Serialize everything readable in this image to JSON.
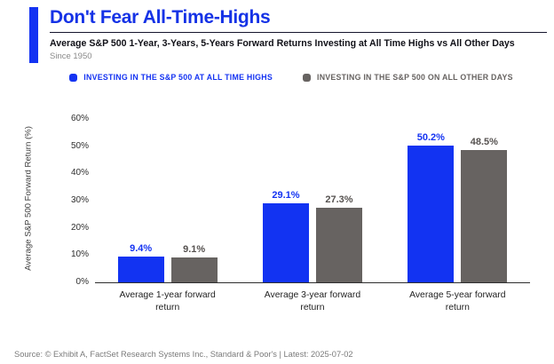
{
  "header": {
    "title": "Don't Fear All-Time-Highs",
    "subtitle": "Average S&P 500 1-Year, 3-Years, 5-Years Forward Returns Investing at All Time Highs vs All Other Days",
    "since": "Since 1950"
  },
  "legend": [
    {
      "label": "INVESTING IN THE S&P 500 AT ALL TIME HIGHS",
      "swatch_color": "#1433f2",
      "text_color": "#1433f2"
    },
    {
      "label": "INVESTING IN THE S&P 500 ON ALL OTHER DAYS",
      "swatch_color": "#676361",
      "text_color": "#676361"
    }
  ],
  "colors": {
    "accent_blue": "#1433f2",
    "bar_blue": "#1233f2",
    "bar_gray": "#676361",
    "title_blue": "#1532e6"
  },
  "chart_data": {
    "type": "bar",
    "title": "Don't Fear All-Time-Highs",
    "subtitle": "Average S&P 500 1-Year, 3-Years, 5-Years Forward Returns Investing at All Time Highs vs All Other Days | Since 1950",
    "categories": [
      "Average 1-year forward return",
      "Average 3-year forward return",
      "Average 5-year forward return"
    ],
    "series": [
      {
        "name": "Investing in the S&P 500 at All Time Highs",
        "color": "#1233f2",
        "label_color": "#1433f2",
        "values": [
          9.4,
          29.1,
          50.2
        ]
      },
      {
        "name": "Investing in the S&P 500 on All Other Days",
        "color": "#676361",
        "label_color": "#565250",
        "values": [
          9.1,
          27.3,
          48.5
        ]
      }
    ],
    "value_label_suffix": "%",
    "xlabel": "",
    "ylabel": "Average S&P 500 Forward Return (%)",
    "yticks": [
      0,
      10,
      20,
      30,
      40,
      50,
      60
    ],
    "ytick_suffix": "%",
    "ylim": [
      0,
      62
    ],
    "grid": false,
    "legend_position": "top"
  },
  "footer": {
    "source": "Source: © Exhibit A, FactSet Research Systems Inc., Standard & Poor's | Latest: 2025-07-02"
  }
}
